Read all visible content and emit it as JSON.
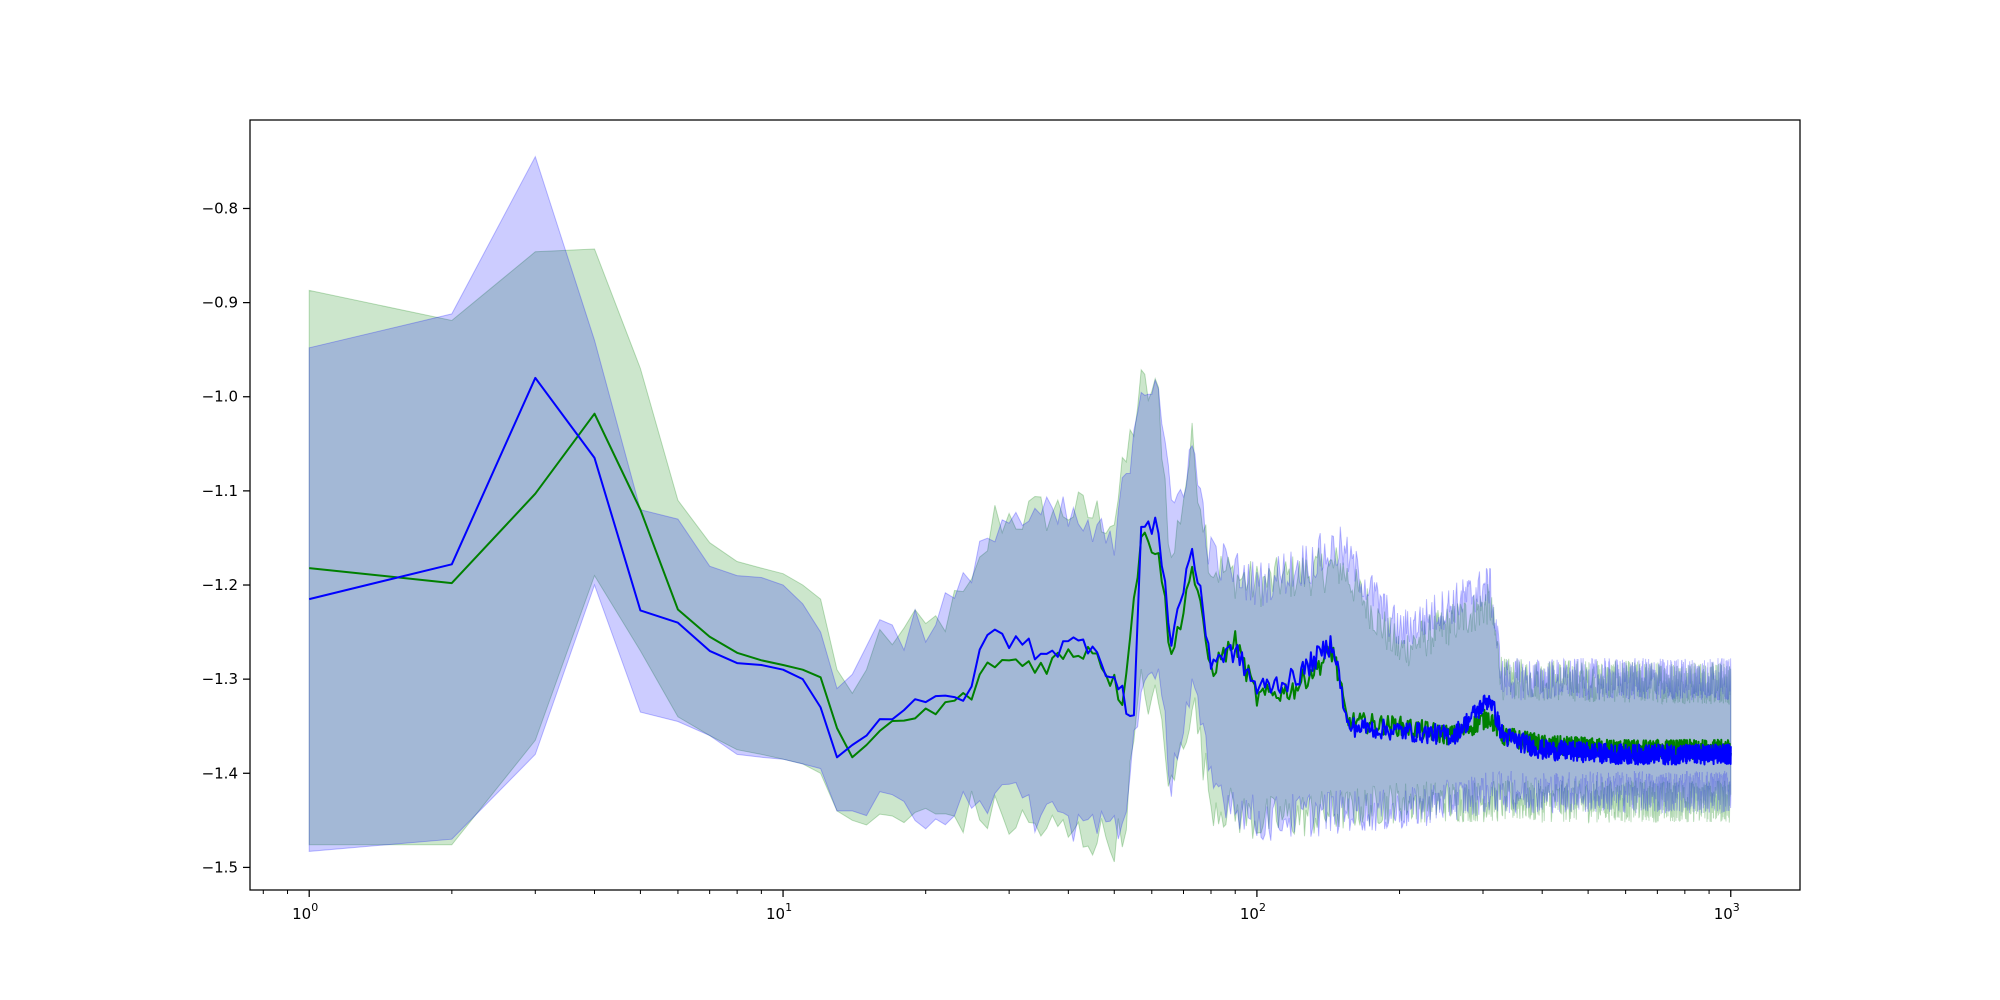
{
  "chart_data": {
    "type": "line",
    "title": "",
    "xlabel": "",
    "ylabel": "",
    "xscale": "log",
    "xlim": [
      0.75,
      1400
    ],
    "ylim": [
      -1.524,
      -0.706
    ],
    "grid": false,
    "legend": "none",
    "x_ticks": [
      {
        "value": 1,
        "base": "10",
        "exp": "0"
      },
      {
        "value": 10,
        "base": "10",
        "exp": "1"
      },
      {
        "value": 100,
        "base": "10",
        "exp": "2"
      },
      {
        "value": 1000,
        "base": "10",
        "exp": "3"
      }
    ],
    "y_ticks": [
      {
        "value": -0.8,
        "label": "−0.8"
      },
      {
        "value": -0.9,
        "label": "−0.9"
      },
      {
        "value": -1.0,
        "label": "−1.0"
      },
      {
        "value": -1.1,
        "label": "−1.1"
      },
      {
        "value": -1.2,
        "label": "−1.2"
      },
      {
        "value": -1.3,
        "label": "−1.3"
      },
      {
        "value": -1.4,
        "label": "−1.4"
      },
      {
        "value": -1.5,
        "label": "−1.5"
      }
    ],
    "noise_start": 16,
    "series": [
      {
        "color": "#008000",
        "band_color": "#008000",
        "band_opacity": 0.2,
        "points": [
          [
            1,
            -1.182
          ],
          [
            2,
            -1.198
          ],
          [
            3,
            -1.103
          ],
          [
            4,
            -1.018
          ],
          [
            5,
            -1.12
          ],
          [
            6,
            -1.226
          ],
          [
            7,
            -1.255
          ],
          [
            8,
            -1.272
          ],
          [
            9,
            -1.28
          ],
          [
            10,
            -1.285
          ],
          [
            11,
            -1.29
          ],
          [
            12,
            -1.298
          ],
          [
            13,
            -1.352
          ],
          [
            14,
            -1.383
          ],
          [
            15,
            -1.37
          ],
          [
            16,
            -1.353
          ],
          [
            20,
            -1.338
          ],
          [
            22,
            -1.33
          ],
          [
            25,
            -1.315
          ],
          [
            28,
            -1.28
          ],
          [
            35,
            -1.285
          ],
          [
            45,
            -1.265
          ],
          [
            52,
            -1.32
          ],
          [
            57,
            -1.15
          ],
          [
            62,
            -1.16
          ],
          [
            66,
            -1.28
          ],
          [
            73,
            -1.18
          ],
          [
            80,
            -1.29
          ],
          [
            90,
            -1.26
          ],
          [
            100,
            -1.32
          ],
          [
            120,
            -1.31
          ],
          [
            145,
            -1.27
          ],
          [
            155,
            -1.345
          ],
          [
            200,
            -1.35
          ],
          [
            260,
            -1.36
          ],
          [
            310,
            -1.34
          ],
          [
            330,
            -1.36
          ],
          [
            400,
            -1.37
          ],
          [
            600,
            -1.375
          ],
          [
            1000,
            -1.375
          ]
        ],
        "upper": [
          [
            1,
            -0.887
          ],
          [
            2,
            -0.919
          ],
          [
            3,
            -0.846
          ],
          [
            4,
            -0.843
          ],
          [
            5,
            -0.97
          ],
          [
            6,
            -1.11
          ],
          [
            7,
            -1.155
          ],
          [
            8,
            -1.175
          ],
          [
            9,
            -1.182
          ],
          [
            10,
            -1.188
          ],
          [
            11,
            -1.2
          ],
          [
            12,
            -1.215
          ],
          [
            13,
            -1.29
          ],
          [
            14,
            -1.315
          ],
          [
            15,
            -1.29
          ],
          [
            16,
            -1.255
          ],
          [
            20,
            -1.25
          ],
          [
            25,
            -1.21
          ],
          [
            28,
            -1.13
          ],
          [
            40,
            -1.12
          ],
          [
            50,
            -1.13
          ],
          [
            57,
            -0.99
          ],
          [
            62,
            -1.0
          ],
          [
            66,
            -1.18
          ],
          [
            73,
            -1.05
          ],
          [
            80,
            -1.18
          ],
          [
            100,
            -1.2
          ],
          [
            150,
            -1.18
          ],
          [
            200,
            -1.27
          ],
          [
            310,
            -1.22
          ],
          [
            330,
            -1.3
          ],
          [
            1000,
            -1.305
          ]
        ],
        "lower": [
          [
            1,
            -1.476
          ],
          [
            2,
            -1.476
          ],
          [
            3,
            -1.365
          ],
          [
            4,
            -1.19
          ],
          [
            5,
            -1.27
          ],
          [
            6,
            -1.34
          ],
          [
            7,
            -1.36
          ],
          [
            8,
            -1.375
          ],
          [
            9,
            -1.38
          ],
          [
            10,
            -1.385
          ],
          [
            11,
            -1.39
          ],
          [
            12,
            -1.4
          ],
          [
            13,
            -1.44
          ],
          [
            14,
            -1.45
          ],
          [
            15,
            -1.455
          ],
          [
            16,
            -1.445
          ],
          [
            20,
            -1.45
          ],
          [
            25,
            -1.44
          ],
          [
            30,
            -1.45
          ],
          [
            40,
            -1.465
          ],
          [
            52,
            -1.47
          ],
          [
            57,
            -1.31
          ],
          [
            62,
            -1.33
          ],
          [
            66,
            -1.42
          ],
          [
            73,
            -1.32
          ],
          [
            80,
            -1.43
          ],
          [
            100,
            -1.45
          ],
          [
            150,
            -1.44
          ],
          [
            200,
            -1.43
          ],
          [
            310,
            -1.43
          ],
          [
            330,
            -1.43
          ],
          [
            1000,
            -1.43
          ]
        ]
      },
      {
        "color": "#0000ff",
        "band_color": "#0000ff",
        "band_opacity": 0.2,
        "points": [
          [
            1,
            -1.215
          ],
          [
            2,
            -1.178
          ],
          [
            3,
            -0.98
          ],
          [
            4,
            -1.065
          ],
          [
            5,
            -1.227
          ],
          [
            6,
            -1.24
          ],
          [
            7,
            -1.27
          ],
          [
            8,
            -1.283
          ],
          [
            9,
            -1.285
          ],
          [
            10,
            -1.29
          ],
          [
            11,
            -1.3
          ],
          [
            12,
            -1.33
          ],
          [
            13,
            -1.383
          ],
          [
            14,
            -1.37
          ],
          [
            15,
            -1.36
          ],
          [
            16,
            -1.34
          ],
          [
            20,
            -1.33
          ],
          [
            22,
            -1.32
          ],
          [
            25,
            -1.31
          ],
          [
            27,
            -1.25
          ],
          [
            35,
            -1.27
          ],
          [
            45,
            -1.26
          ],
          [
            55,
            -1.34
          ],
          [
            57,
            -1.14
          ],
          [
            62,
            -1.14
          ],
          [
            66,
            -1.26
          ],
          [
            73,
            -1.16
          ],
          [
            80,
            -1.28
          ],
          [
            90,
            -1.27
          ],
          [
            100,
            -1.31
          ],
          [
            120,
            -1.3
          ],
          [
            145,
            -1.26
          ],
          [
            155,
            -1.35
          ],
          [
            200,
            -1.355
          ],
          [
            260,
            -1.36
          ],
          [
            310,
            -1.32
          ],
          [
            330,
            -1.36
          ],
          [
            400,
            -1.375
          ],
          [
            600,
            -1.38
          ],
          [
            1000,
            -1.38
          ]
        ],
        "upper": [
          [
            1,
            -0.948
          ],
          [
            2,
            -0.912
          ],
          [
            3,
            -0.745
          ],
          [
            4,
            -0.94
          ],
          [
            5,
            -1.12
          ],
          [
            6,
            -1.13
          ],
          [
            7,
            -1.18
          ],
          [
            8,
            -1.19
          ],
          [
            9,
            -1.192
          ],
          [
            10,
            -1.2
          ],
          [
            11,
            -1.22
          ],
          [
            12,
            -1.25
          ],
          [
            13,
            -1.31
          ],
          [
            14,
            -1.295
          ],
          [
            15,
            -1.265
          ],
          [
            16,
            -1.25
          ],
          [
            20,
            -1.24
          ],
          [
            25,
            -1.2
          ],
          [
            28,
            -1.13
          ],
          [
            40,
            -1.13
          ],
          [
            50,
            -1.16
          ],
          [
            57,
            -0.985
          ],
          [
            62,
            -0.98
          ],
          [
            66,
            -1.13
          ],
          [
            73,
            -1.055
          ],
          [
            80,
            -1.17
          ],
          [
            100,
            -1.2
          ],
          [
            150,
            -1.16
          ],
          [
            200,
            -1.25
          ],
          [
            310,
            -1.2
          ],
          [
            330,
            -1.3
          ],
          [
            1000,
            -1.3
          ]
        ],
        "lower": [
          [
            1,
            -1.483
          ],
          [
            2,
            -1.47
          ],
          [
            3,
            -1.38
          ],
          [
            4,
            -1.2
          ],
          [
            5,
            -1.335
          ],
          [
            6,
            -1.345
          ],
          [
            7,
            -1.36
          ],
          [
            8,
            -1.38
          ],
          [
            9,
            -1.383
          ],
          [
            10,
            -1.385
          ],
          [
            11,
            -1.39
          ],
          [
            12,
            -1.395
          ],
          [
            13,
            -1.44
          ],
          [
            14,
            -1.44
          ],
          [
            15,
            -1.445
          ],
          [
            16,
            -1.44
          ],
          [
            20,
            -1.44
          ],
          [
            25,
            -1.42
          ],
          [
            30,
            -1.43
          ],
          [
            40,
            -1.45
          ],
          [
            52,
            -1.46
          ],
          [
            57,
            -1.3
          ],
          [
            62,
            -1.31
          ],
          [
            66,
            -1.4
          ],
          [
            73,
            -1.31
          ],
          [
            80,
            -1.41
          ],
          [
            100,
            -1.45
          ],
          [
            150,
            -1.44
          ],
          [
            200,
            -1.44
          ],
          [
            310,
            -1.42
          ],
          [
            330,
            -1.42
          ],
          [
            1000,
            -1.42
          ]
        ]
      }
    ]
  }
}
